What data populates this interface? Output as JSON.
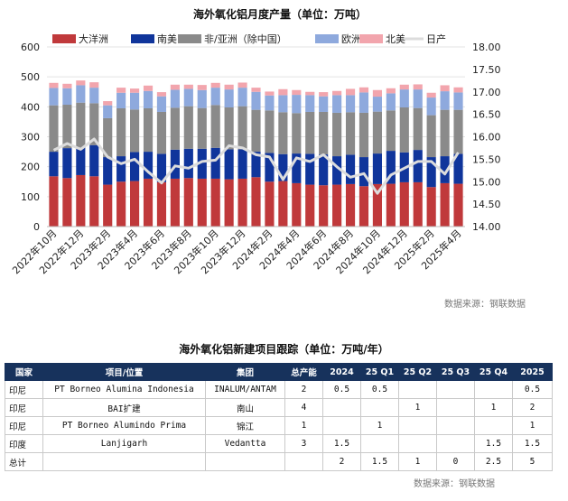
{
  "chart_data": {
    "type": "bar",
    "title": "海外氧化铝月度产量（单位：万吨）",
    "source": "数据来源：钢联数据",
    "categories": [
      "2022年10月",
      "2022年11月",
      "2022年12月",
      "2023年1月",
      "2023年2月",
      "2023年3月",
      "2023年4月",
      "2023年5月",
      "2023年6月",
      "2023年7月",
      "2023年8月",
      "2023年9月",
      "2023年10月",
      "2023年11月",
      "2023年12月",
      "2024年1月",
      "2024年2月",
      "2024年3月",
      "2024年4月",
      "2024年5月",
      "2024年6月",
      "2024年7月",
      "2024年8月",
      "2024年9月",
      "2024年10月",
      "2024年11月",
      "2024年12月",
      "2025年1月",
      "2025年2月",
      "2025年3月",
      "2025年4月"
    ],
    "x_tick_labels": [
      "2022年10月",
      "2022年12月",
      "2023年2月",
      "2023年4月",
      "2023年6月",
      "2023年8月",
      "2023年10月",
      "2023年12月",
      "2024年2月",
      "2024年4月",
      "2024年6月",
      "2024年8月",
      "2024年10月",
      "2024年12月",
      "2025年2月",
      "2025年4月"
    ],
    "stacked": true,
    "ylim": [
      0,
      600
    ],
    "y_ticks": [
      0,
      100,
      200,
      300,
      400,
      500,
      600
    ],
    "y2lim": [
      14.0,
      18.0
    ],
    "y2_ticks": [
      "14.00",
      "14.50",
      "15.00",
      "15.50",
      "16.00",
      "16.50",
      "17.00",
      "17.50",
      "18.00"
    ],
    "legend_position": "top",
    "series": [
      {
        "name": "大洋洲",
        "color": "#c0393b",
        "values": [
          168,
          162,
          172,
          168,
          140,
          150,
          152,
          160,
          148,
          160,
          162,
          160,
          160,
          158,
          160,
          165,
          150,
          152,
          145,
          140,
          138,
          140,
          142,
          135,
          142,
          143,
          148,
          148,
          132,
          145,
          143
        ]
      },
      {
        "name": "南美",
        "color": "#10359b",
        "values": [
          82,
          100,
          92,
          104,
          92,
          85,
          97,
          90,
          95,
          97,
          98,
          100,
          103,
          100,
          98,
          85,
          96,
          90,
          99,
          103,
          103,
          95,
          98,
          97,
          102,
          110,
          100,
          108,
          100,
          90,
          100
        ]
      },
      {
        "name": "非/亚洲（除中国）",
        "color": "#8a8a8a",
        "values": [
          155,
          145,
          150,
          140,
          130,
          160,
          142,
          145,
          140,
          140,
          142,
          136,
          143,
          140,
          144,
          140,
          142,
          140,
          135,
          140,
          142,
          145,
          142,
          148,
          140,
          135,
          150,
          140,
          140,
          155,
          147
        ]
      },
      {
        "name": "欧洲",
        "color": "#8ea9dd",
        "values": [
          58,
          55,
          58,
          52,
          43,
          52,
          56,
          58,
          52,
          60,
          58,
          60,
          58,
          60,
          62,
          60,
          50,
          57,
          61,
          56,
          52,
          59,
          57,
          68,
          50,
          57,
          60,
          62,
          59,
          62,
          58
        ]
      },
      {
        "name": "北美",
        "color": "#f2a5ad",
        "values": [
          17,
          15,
          16,
          18,
          14,
          17,
          14,
          18,
          14,
          17,
          14,
          17,
          16,
          16,
          17,
          14,
          13,
          20,
          16,
          11,
          14,
          14,
          21,
          17,
          22,
          17,
          16,
          17,
          16,
          20,
          17
        ]
      },
      {
        "name": "日产",
        "type": "line",
        "axis": "right",
        "color": "#dcdcdc",
        "values": [
          15.7,
          15.85,
          15.72,
          15.95,
          15.55,
          15.4,
          15.5,
          15.22,
          14.97,
          15.35,
          15.3,
          15.45,
          15.48,
          15.8,
          15.75,
          15.6,
          15.55,
          15.05,
          15.53,
          15.45,
          15.6,
          15.33,
          15.1,
          15.18,
          14.74,
          15.15,
          15.3,
          15.45,
          15.45,
          15.17,
          15.65
        ]
      }
    ]
  },
  "table": {
    "title": "海外氧化铝新建项目跟踪（单位：万吨/年）",
    "source": "数据来源：钢联数据",
    "headers": [
      "国家",
      "项目/位置",
      "集团",
      "总产能",
      "2024",
      "25 Q1",
      "25 Q2",
      "25 Q3",
      "25 Q4",
      "2025"
    ],
    "rows": [
      [
        "印尼",
        "PT Borneo Alumina Indonesia",
        "INALUM/ANTAM",
        "2",
        "0.5",
        "0.5",
        "",
        "",
        "",
        "0.5"
      ],
      [
        "印尼",
        "BAI扩建",
        "南山",
        "4",
        "",
        "",
        "1",
        "",
        "1",
        "2"
      ],
      [
        "印尼",
        "PT Borneo Alumindo Prima",
        "锦江",
        "1",
        "",
        "1",
        "",
        "",
        "",
        "1"
      ],
      [
        "印度",
        "Lanjigarh",
        "Vedantta",
        "3",
        "1.5",
        "",
        "",
        "",
        "1.5",
        "1.5"
      ],
      [
        "总计",
        "",
        "",
        "",
        "2",
        "1.5",
        "1",
        "0",
        "2.5",
        "5"
      ]
    ]
  }
}
